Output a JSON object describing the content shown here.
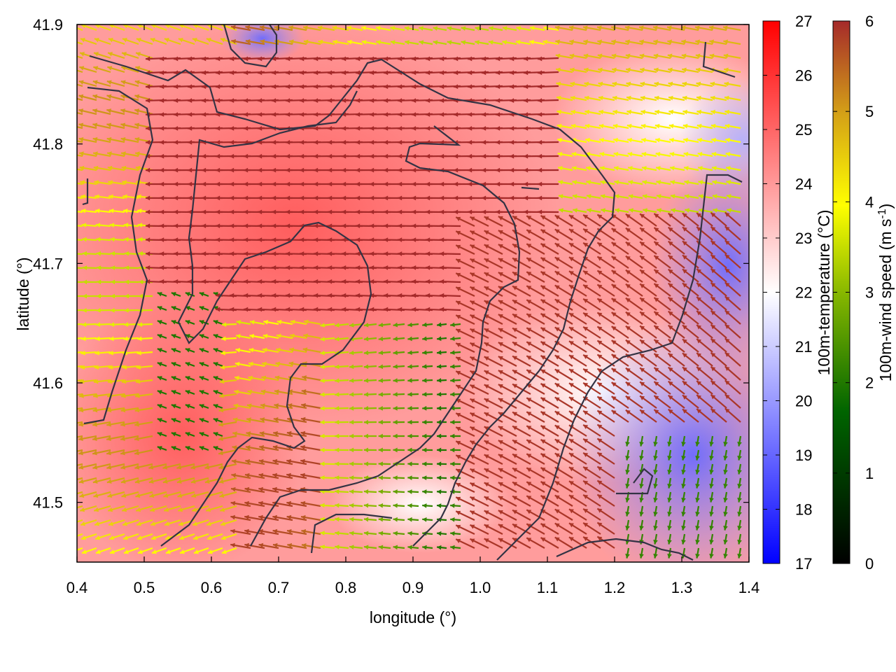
{
  "chart_data": {
    "type": "heatmap",
    "title": "",
    "xlabel": "longitude (°)",
    "ylabel": "latitude (°)",
    "xlim": [
      0.4,
      1.4
    ],
    "ylim": [
      41.45,
      41.9
    ],
    "xticks": [
      "0.4",
      "0.5",
      "0.6",
      "0.7",
      "0.8",
      "0.9",
      "1.0",
      "1.1",
      "1.2",
      "1.3",
      "1.4"
    ],
    "yticks": [
      "41.5",
      "41.6",
      "41.7",
      "41.8",
      "41.9"
    ],
    "grid": false,
    "temperature_colorbar": {
      "label": "100m-temperature (°C)",
      "range": [
        17,
        27
      ],
      "ticks": [
        "17",
        "18",
        "19",
        "20",
        "21",
        "22",
        "23",
        "24",
        "25",
        "26",
        "27"
      ],
      "colors": [
        "#0000ff",
        "#ffffff",
        "#ff0000"
      ]
    },
    "wind_colorbar": {
      "label_main": "100m-wind speed (m s",
      "label_sup": "-1",
      "label_end": ")",
      "range": [
        0,
        6
      ],
      "ticks": [
        "0",
        "1",
        "2",
        "3",
        "4",
        "5",
        "6"
      ],
      "colors": [
        "#000000",
        "#006400",
        "#ffff00",
        "#d4a017",
        "#a52a2a"
      ]
    },
    "temperature_field_description_regions": [
      {
        "region": "west_center",
        "temperature": 25
      },
      {
        "region": "north_center",
        "temperature": 25.5
      },
      {
        "region": "northeast",
        "temperature": 22
      },
      {
        "region": "southeast",
        "temperature": 19.5
      },
      {
        "region": "south_center",
        "temperature": 23
      }
    ],
    "wind_regimes": [
      {
        "region": "north_center",
        "speed": 6,
        "direction_deg_from": 90
      },
      {
        "region": "west",
        "speed": 4.5,
        "direction_deg_from": 110
      },
      {
        "region": "east",
        "speed": 6,
        "direction_deg_from": 60
      },
      {
        "region": "northeast",
        "speed": 3.5,
        "direction_deg_from": 80
      },
      {
        "region": "south_center",
        "speed": 2,
        "direction_deg_from": 90
      }
    ]
  }
}
